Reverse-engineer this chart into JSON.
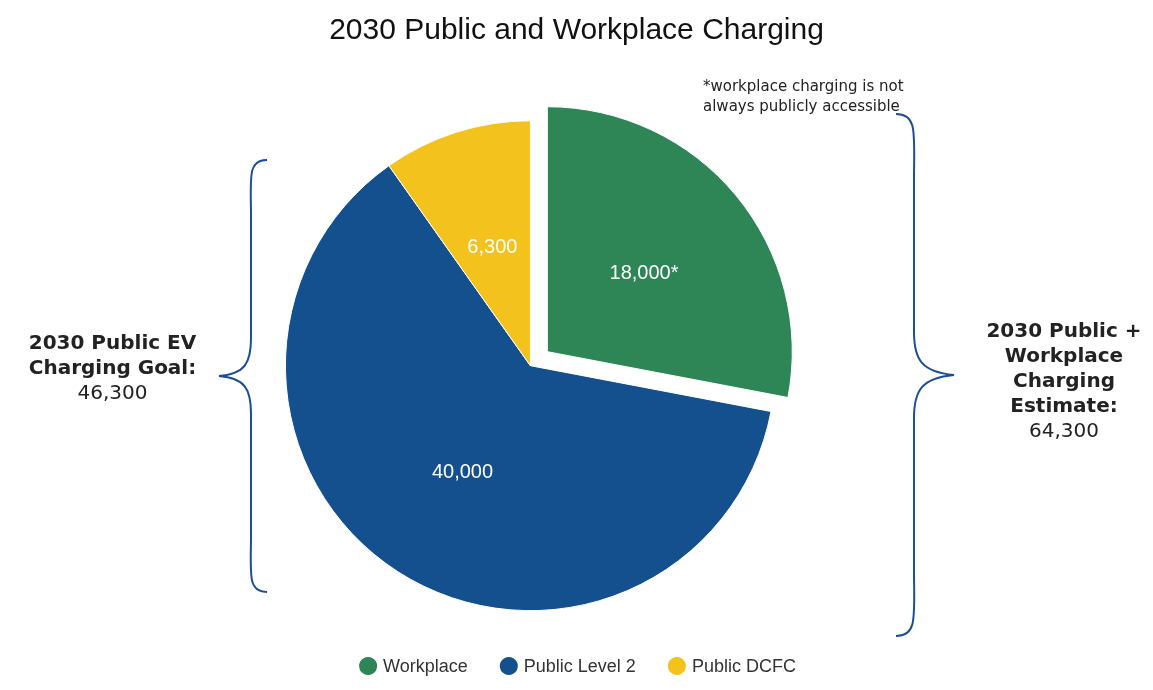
{
  "chart_data": {
    "type": "pie",
    "title": "2030 Public and Workplace Charging",
    "categories": [
      "Workplace",
      "Public Level 2",
      "Public DCFC"
    ],
    "values": [
      18000,
      40000,
      6300
    ],
    "value_labels": [
      "18,000*",
      "40,000",
      "6,300"
    ],
    "colors": [
      "#2e8656",
      "#15508e",
      "#f4c21d"
    ],
    "legend": "bottom",
    "annotations": [
      "*workplace charging is not always publicly accessible",
      "2030 Public EV Charging Goal:",
      "46,300",
      "2030 Public + Workplace Charging Estimate:",
      "64,300"
    ]
  }
}
